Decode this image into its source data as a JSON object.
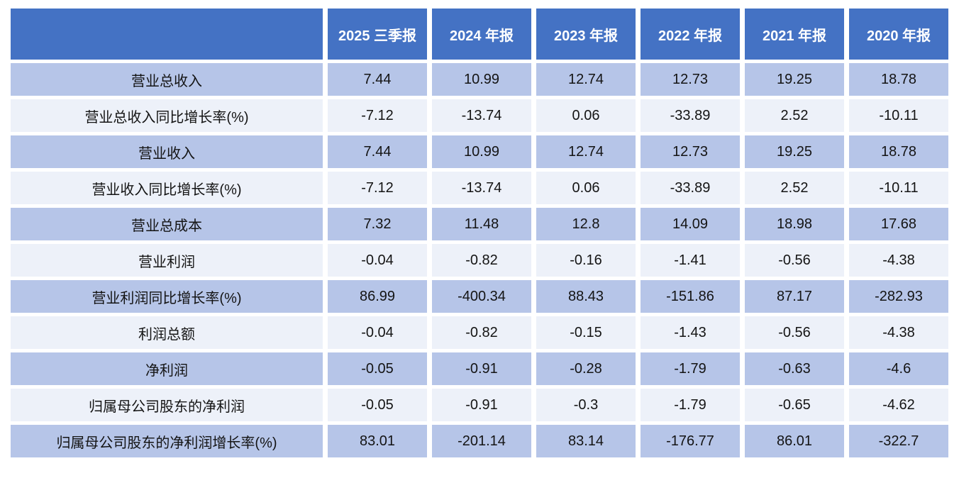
{
  "chart_data": {
    "type": "table",
    "title": "",
    "columns": [
      "",
      "2025 三季报",
      "2024 年报",
      "2023 年报",
      "2022 年报",
      "2021 年报",
      "2020 年报"
    ],
    "rows": [
      {
        "label": "营业总收入",
        "values": [
          "7.44",
          "10.99",
          "12.74",
          "12.73",
          "19.25",
          "18.78"
        ]
      },
      {
        "label": "营业总收入同比增长率(%)",
        "values": [
          "-7.12",
          "-13.74",
          "0.06",
          "-33.89",
          "2.52",
          "-10.11"
        ]
      },
      {
        "label": "营业收入",
        "values": [
          "7.44",
          "10.99",
          "12.74",
          "12.73",
          "19.25",
          "18.78"
        ]
      },
      {
        "label": "营业收入同比增长率(%)",
        "values": [
          "-7.12",
          "-13.74",
          "0.06",
          "-33.89",
          "2.52",
          "-10.11"
        ]
      },
      {
        "label": "营业总成本",
        "values": [
          "7.32",
          "11.48",
          "12.8",
          "14.09",
          "18.98",
          "17.68"
        ]
      },
      {
        "label": "营业利润",
        "values": [
          "-0.04",
          "-0.82",
          "-0.16",
          "-1.41",
          "-0.56",
          "-4.38"
        ]
      },
      {
        "label": "营业利润同比增长率(%)",
        "values": [
          "86.99",
          "-400.34",
          "88.43",
          "-151.86",
          "87.17",
          "-282.93"
        ]
      },
      {
        "label": "利润总额",
        "values": [
          "-0.04",
          "-0.82",
          "-0.15",
          "-1.43",
          "-0.56",
          "-4.38"
        ]
      },
      {
        "label": "净利润",
        "values": [
          "-0.05",
          "-0.91",
          "-0.28",
          "-1.79",
          "-0.63",
          "-4.6"
        ]
      },
      {
        "label": "归属母公司股东的净利润",
        "values": [
          "-0.05",
          "-0.91",
          "-0.3",
          "-1.79",
          "-0.65",
          "-4.62"
        ]
      },
      {
        "label": "归属母公司股东的净利润增长率(%)",
        "values": [
          "83.01",
          "-201.14",
          "83.14",
          "-176.77",
          "86.01",
          "-322.7"
        ]
      }
    ],
    "layout": {
      "banding": [
        "blue",
        "light"
      ],
      "grid": "white-gaps",
      "legend": "none"
    }
  },
  "colors": {
    "header_bg": "#4472c4",
    "band_blue": "#b6c5e8",
    "band_light": "#edf1f9",
    "header_text": "#ffffff",
    "cell_text": "#141414",
    "page_bg": "#ffffff"
  }
}
